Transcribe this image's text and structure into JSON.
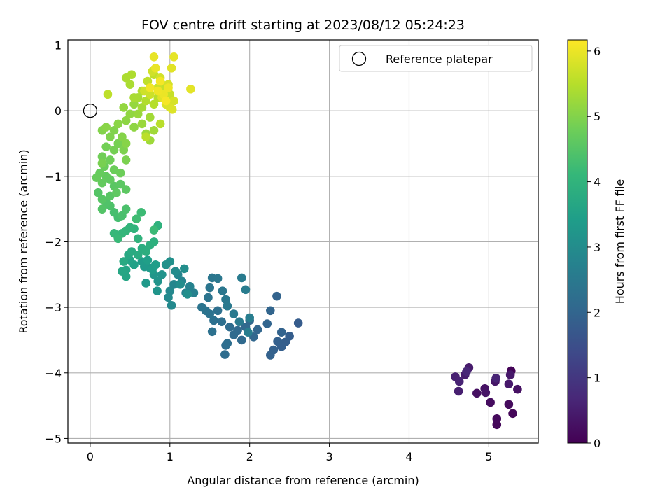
{
  "chart_data": {
    "type": "scatter",
    "title": "FOV centre drift starting at 2023/08/12 05:24:23",
    "xlabel": "Angular distance from reference (arcmin)",
    "ylabel": "Rotation from reference (arcmin)",
    "xlim": [
      -0.28,
      5.62
    ],
    "ylim": [
      -5.07,
      1.08
    ],
    "x_ticks": [
      0,
      1,
      2,
      3,
      4,
      5
    ],
    "y_ticks": [
      1,
      0,
      -1,
      -2,
      -3,
      -4,
      -5
    ],
    "grid": true,
    "legend": {
      "position": "top-right",
      "entries": [
        "Reference platepar"
      ]
    },
    "reference_point": {
      "x": 0,
      "y": 0
    },
    "colorbar": {
      "label": "Hours from first FF file",
      "colormap": "viridis",
      "range": [
        0,
        6.17
      ],
      "ticks": [
        0,
        1,
        2,
        3,
        4,
        5,
        6
      ]
    },
    "colors": {
      "viridis": [
        "#440154",
        "#482878",
        "#3e4989",
        "#31688e",
        "#26828e",
        "#1f9e89",
        "#35b779",
        "#6ece58",
        "#b5de2b",
        "#fde725"
      ]
    },
    "points": [
      [
        5.28,
        -3.97,
        0.05
      ],
      [
        5.3,
        -4.62,
        0.1
      ],
      [
        5.1,
        -4.79,
        0.12
      ],
      [
        5.1,
        -4.7,
        0.15
      ],
      [
        5.25,
        -4.48,
        0.18
      ],
      [
        5.02,
        -4.45,
        0.2
      ],
      [
        4.85,
        -4.31,
        0.24
      ],
      [
        5.36,
        -4.25,
        0.28
      ],
      [
        4.95,
        -4.24,
        0.3
      ],
      [
        4.96,
        -4.3,
        0.34
      ],
      [
        5.08,
        -4.13,
        0.37
      ],
      [
        5.27,
        -4.03,
        0.4
      ],
      [
        5.25,
        -4.17,
        0.43
      ],
      [
        4.75,
        -3.92,
        0.46
      ],
      [
        4.7,
        -4.03,
        0.5
      ],
      [
        4.62,
        -4.28,
        0.53
      ],
      [
        4.58,
        -4.06,
        0.56
      ],
      [
        4.63,
        -4.13,
        0.6
      ],
      [
        5.09,
        -4.08,
        0.63
      ],
      [
        4.72,
        -3.98,
        0.66
      ],
      [
        2.61,
        -3.24,
        1.8
      ],
      [
        2.5,
        -3.44,
        1.82
      ],
      [
        2.45,
        -3.53,
        1.84
      ],
      [
        2.4,
        -3.6,
        1.86
      ],
      [
        2.35,
        -3.52,
        1.88
      ],
      [
        2.3,
        -3.65,
        1.9
      ],
      [
        2.26,
        -3.73,
        1.92
      ],
      [
        2.4,
        -3.38,
        1.94
      ],
      [
        2.34,
        -2.83,
        1.96
      ],
      [
        2.26,
        -3.05,
        1.98
      ],
      [
        2.22,
        -3.25,
        2.0
      ],
      [
        2.1,
        -3.34,
        2.02
      ],
      [
        2.05,
        -3.45,
        2.04
      ],
      [
        2.0,
        -3.2,
        2.06
      ],
      [
        1.95,
        -3.3,
        2.08
      ],
      [
        1.9,
        -3.5,
        2.1
      ],
      [
        1.85,
        -3.35,
        2.12
      ],
      [
        1.8,
        -3.42,
        2.14
      ],
      [
        1.75,
        -3.3,
        2.16
      ],
      [
        1.7,
        -3.58,
        2.18
      ],
      [
        1.69,
        -3.72,
        2.2
      ],
      [
        1.72,
        -3.55,
        2.22
      ],
      [
        1.65,
        -3.22,
        2.24
      ],
      [
        1.6,
        -3.05,
        2.26
      ],
      [
        1.55,
        -3.2,
        2.28
      ],
      [
        1.53,
        -3.37,
        2.3
      ],
      [
        1.5,
        -3.1,
        2.32
      ],
      [
        1.45,
        -3.05,
        2.34
      ],
      [
        1.4,
        -3.0,
        2.36
      ],
      [
        1.48,
        -2.85,
        2.38
      ],
      [
        1.5,
        -2.7,
        2.4
      ],
      [
        1.53,
        -2.55,
        2.42
      ],
      [
        1.6,
        -2.56,
        2.44
      ],
      [
        1.66,
        -2.75,
        2.46
      ],
      [
        1.7,
        -2.88,
        2.48
      ],
      [
        1.72,
        -2.98,
        2.5
      ],
      [
        1.8,
        -3.1,
        2.52
      ],
      [
        1.87,
        -3.22,
        2.54
      ],
      [
        1.9,
        -2.55,
        2.56
      ],
      [
        1.95,
        -2.73,
        2.58
      ],
      [
        2.0,
        -3.16,
        2.6
      ],
      [
        1.98,
        -3.38,
        2.62
      ],
      [
        1.3,
        -2.78,
        2.7
      ],
      [
        1.25,
        -2.68,
        2.73
      ],
      [
        1.2,
        -2.78,
        2.76
      ],
      [
        1.15,
        -2.6,
        2.79
      ],
      [
        1.1,
        -2.5,
        2.82
      ],
      [
        1.05,
        -2.65,
        2.85
      ],
      [
        1.0,
        -2.75,
        2.88
      ],
      [
        1.02,
        -2.97,
        2.91
      ],
      [
        0.98,
        -2.85,
        2.94
      ],
      [
        1.07,
        -2.45,
        2.97
      ],
      [
        1.13,
        -2.65,
        3.0
      ],
      [
        1.18,
        -2.41,
        3.03
      ],
      [
        1.22,
        -2.8,
        3.06
      ],
      [
        1.0,
        -2.3,
        3.09
      ],
      [
        0.95,
        -2.35,
        3.12
      ],
      [
        0.9,
        -2.5,
        3.15
      ],
      [
        0.85,
        -2.6,
        3.18
      ],
      [
        0.84,
        -2.75,
        3.21
      ],
      [
        0.8,
        -2.5,
        3.24
      ],
      [
        0.75,
        -2.4,
        3.27
      ],
      [
        0.7,
        -2.63,
        3.3
      ],
      [
        0.68,
        -2.38,
        3.33
      ],
      [
        0.65,
        -2.3,
        3.36
      ],
      [
        0.78,
        -2.42,
        3.39
      ],
      [
        0.82,
        -2.35,
        3.42
      ],
      [
        0.72,
        -2.28,
        3.45
      ],
      [
        0.55,
        -2.35,
        3.5
      ],
      [
        0.5,
        -2.28,
        3.55
      ],
      [
        0.45,
        -2.43,
        3.6
      ],
      [
        0.45,
        -2.53,
        3.63
      ],
      [
        0.4,
        -2.45,
        3.66
      ],
      [
        0.48,
        -2.2,
        3.7
      ],
      [
        0.42,
        -2.3,
        3.73
      ],
      [
        0.52,
        -2.15,
        3.76
      ],
      [
        0.6,
        -2.2,
        3.79
      ],
      [
        0.65,
        -2.1,
        3.82
      ],
      [
        0.7,
        -2.15,
        3.85
      ],
      [
        0.75,
        -2.05,
        3.88
      ],
      [
        0.8,
        -2.0,
        3.91
      ],
      [
        0.85,
        -1.75,
        3.94
      ],
      [
        0.6,
        -1.95,
        3.97
      ],
      [
        0.55,
        -1.8,
        4.0
      ],
      [
        0.5,
        -1.78,
        4.03
      ],
      [
        0.45,
        -1.83,
        4.06
      ],
      [
        0.4,
        -1.87,
        4.09
      ],
      [
        0.3,
        -1.87,
        4.12
      ],
      [
        0.35,
        -1.95,
        4.15
      ],
      [
        0.8,
        -1.82,
        4.18
      ],
      [
        0.64,
        -1.55,
        4.21
      ],
      [
        0.58,
        -1.65,
        4.24
      ],
      [
        0.35,
        -1.63,
        4.3
      ],
      [
        0.3,
        -1.55,
        4.33
      ],
      [
        0.4,
        -1.6,
        4.36
      ],
      [
        0.45,
        -1.5,
        4.39
      ],
      [
        0.25,
        -1.45,
        4.42
      ],
      [
        0.2,
        -1.4,
        4.45
      ],
      [
        0.15,
        -1.5,
        4.48
      ],
      [
        0.1,
        -1.25,
        4.5
      ],
      [
        0.15,
        -1.35,
        4.52
      ],
      [
        0.25,
        -1.3,
        4.54
      ],
      [
        0.3,
        -1.15,
        4.56
      ],
      [
        0.38,
        -1.12,
        4.58
      ],
      [
        0.45,
        -1.2,
        4.6
      ],
      [
        0.33,
        -1.25,
        4.62
      ],
      [
        0.25,
        -1.05,
        4.64
      ],
      [
        0.2,
        -1.0,
        4.66
      ],
      [
        0.15,
        -1.1,
        4.68
      ],
      [
        0.12,
        -0.95,
        4.7
      ],
      [
        0.08,
        -1.02,
        4.72
      ],
      [
        0.18,
        -0.85,
        4.74
      ],
      [
        0.3,
        -0.9,
        4.76
      ],
      [
        0.38,
        -0.95,
        4.78
      ],
      [
        0.25,
        -0.75,
        4.8
      ],
      [
        0.15,
        -0.7,
        4.82
      ],
      [
        0.2,
        -0.55,
        4.84
      ],
      [
        0.3,
        -0.6,
        4.86
      ],
      [
        0.35,
        -0.5,
        4.88
      ],
      [
        0.15,
        -0.8,
        4.9
      ],
      [
        0.45,
        -0.75,
        4.92
      ],
      [
        0.42,
        -0.6,
        4.94
      ],
      [
        0.25,
        -0.4,
        4.96
      ],
      [
        0.3,
        -0.3,
        4.98
      ],
      [
        0.15,
        -0.3,
        5.0
      ],
      [
        0.4,
        -0.4,
        5.02
      ],
      [
        0.45,
        -0.5,
        5.04
      ],
      [
        0.2,
        -0.25,
        5.06
      ],
      [
        0.35,
        -0.2,
        5.08
      ],
      [
        0.45,
        -0.15,
        5.1
      ],
      [
        0.55,
        -0.25,
        5.12
      ],
      [
        0.5,
        -0.05,
        5.14
      ],
      [
        0.42,
        0.05,
        5.16
      ],
      [
        0.55,
        0.1,
        5.18
      ],
      [
        0.6,
        -0.05,
        5.2
      ],
      [
        0.65,
        -0.2,
        5.22
      ],
      [
        0.7,
        -0.35,
        5.24
      ],
      [
        0.75,
        -0.45,
        5.26
      ],
      [
        0.8,
        -0.3,
        5.28
      ],
      [
        0.75,
        -0.1,
        5.3
      ],
      [
        0.65,
        0.05,
        5.32
      ],
      [
        0.6,
        0.2,
        5.34
      ],
      [
        0.55,
        0.2,
        5.36
      ],
      [
        0.5,
        0.4,
        5.38
      ],
      [
        0.45,
        0.5,
        5.4
      ],
      [
        0.52,
        0.55,
        5.42
      ],
      [
        0.65,
        0.3,
        5.44
      ],
      [
        0.7,
        0.15,
        5.46
      ],
      [
        0.8,
        0.1,
        5.48
      ],
      [
        0.85,
        0.2,
        5.5
      ],
      [
        0.88,
        -0.2,
        5.52
      ],
      [
        0.7,
        -0.4,
        5.54
      ],
      [
        0.22,
        0.25,
        5.56
      ],
      [
        0.72,
        0.45,
        5.58
      ],
      [
        0.8,
        0.55,
        5.6
      ],
      [
        0.9,
        0.4,
        5.62
      ],
      [
        0.95,
        0.3,
        5.64
      ],
      [
        1.0,
        0.25,
        5.66
      ],
      [
        0.85,
        0.35,
        5.68
      ],
      [
        0.75,
        0.25,
        5.7
      ],
      [
        0.68,
        0.3,
        5.72
      ],
      [
        0.78,
        0.6,
        5.74
      ],
      [
        0.88,
        0.5,
        5.76
      ],
      [
        0.98,
        0.4,
        5.78
      ],
      [
        1.05,
        0.15,
        5.8
      ],
      [
        0.95,
        0.1,
        5.82
      ],
      [
        1.0,
        0.05,
        5.84
      ],
      [
        1.03,
        0.02,
        5.86
      ],
      [
        0.9,
        0.2,
        5.88
      ],
      [
        1.02,
        0.65,
        5.9
      ],
      [
        1.26,
        0.33,
        5.92
      ],
      [
        1.05,
        0.82,
        5.94
      ],
      [
        0.8,
        0.82,
        5.96
      ],
      [
        0.82,
        0.65,
        5.98
      ],
      [
        0.92,
        0.25,
        6.0
      ],
      [
        0.98,
        0.35,
        6.02
      ],
      [
        0.85,
        0.3,
        6.04
      ],
      [
        0.75,
        0.35,
        6.06
      ],
      [
        0.88,
        0.45,
        6.08
      ],
      [
        0.95,
        0.15,
        6.1
      ]
    ]
  }
}
